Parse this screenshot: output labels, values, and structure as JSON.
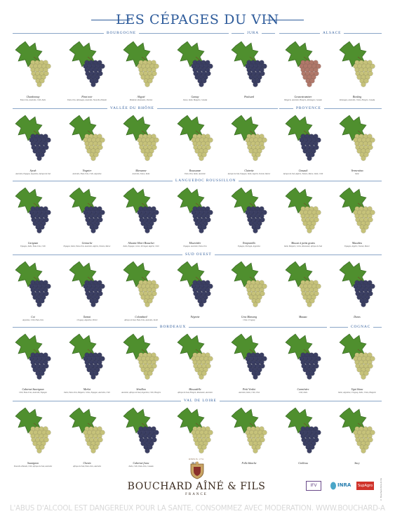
{
  "title": "LES CÉPAGES DU VIN",
  "regions": [
    {
      "label": "BOURGOGNE"
    },
    {
      "label": "JURA"
    },
    {
      "label": "ALSACE"
    },
    {
      "label": "VALLÉE DU RHÔNE"
    },
    {
      "label": "PROVENCE"
    },
    {
      "label": "LANGUEDOC ROUSSILLON"
    },
    {
      "label": "SUD OUEST"
    },
    {
      "label": "BORDEAUX"
    },
    {
      "label": "COGNAC"
    },
    {
      "label": "VAL DE LOIRE"
    }
  ],
  "rows": [
    [
      {
        "name": "Chardonnay",
        "origin": "Etats-Unis, Australie, Chili, Italie",
        "berry": "white"
      },
      {
        "name": "Pinot noir",
        "origin": "Etats-Unis, Allemagne, Australie, Nouvelle-Zélande",
        "berry": "black"
      },
      {
        "name": "Aligoté",
        "origin": "Moldavie, Roumanie, Ukraine",
        "berry": "white"
      },
      {
        "name": "Gamay",
        "origin": "Suisse, Italie, Bulgarie, Canada",
        "berry": "black"
      },
      {
        "name": "Poulsard",
        "origin": "",
        "berry": "black"
      },
      {
        "name": "Gewurztraminer",
        "origin": "Bulgarie, Australie, Hongrie, Allemagne, Canada",
        "berry": "pink"
      },
      {
        "name": "Riesling",
        "origin": "Allemagne, Australie, Chine, Hongrie, Canada",
        "berry": "white"
      }
    ],
    [
      {
        "name": "Syrah",
        "origin": "Australie, Espagne, Argentine, Afrique du Sud",
        "berry": "black"
      },
      {
        "name": "Viognier",
        "origin": "Australie, Etats-Unis, Chili, Argentine",
        "berry": "white"
      },
      {
        "name": "Marsanne",
        "origin": "Australie, Suisse, Italie",
        "berry": "white"
      },
      {
        "name": "Roussanne",
        "origin": "Etats-Unis, Italie, Australie",
        "berry": "white"
      },
      {
        "name": "Clairette",
        "origin": "Afrique du Sud, Espagne, Italie, Algérie, Tunisie, Maroc",
        "berry": "white"
      },
      {
        "name": "Cinsault",
        "origin": "Afrique du Sud, Algérie, Tunisie, Maroc, Italie, Chili",
        "berry": "black"
      },
      {
        "name": "Vermentino",
        "origin": "Italie",
        "berry": "white"
      }
    ],
    [
      {
        "name": "Carignan",
        "origin": "Espagne, Italie, Etats-Unis, Chili",
        "berry": "black"
      },
      {
        "name": "Grenache",
        "origin": "Espagne, Italie, Etats-Unis, Australie, Algérie, Tunisie, Maroc",
        "berry": "black"
      },
      {
        "name": "Alicante Henri Bouschet",
        "origin": "Italie, Espagne, Grèce, Portugal, Algérie, Chili",
        "berry": "black"
      },
      {
        "name": "Mourvèdre",
        "origin": "Espagne, Australie, Etats-Unis",
        "berry": "black"
      },
      {
        "name": "Tempranillo",
        "origin": "Espagne, Portugal, Argentine",
        "berry": "black"
      },
      {
        "name": "Muscat à petits grains",
        "origin": "Italie, Bulgarie, Grèce, Roumanie, Afrique du Sud",
        "berry": "white"
      },
      {
        "name": "Macabeu",
        "origin": "Espagne, Algérie, Tunisie, Maroc",
        "berry": "white"
      }
    ],
    [
      {
        "name": "Cot",
        "origin": "Argentine, Chili, Etats-Unis",
        "berry": "black"
      },
      {
        "name": "Tannat",
        "origin": "Uruguay, Argentine, Brésil",
        "berry": "black"
      },
      {
        "name": "Colombard",
        "origin": "Afrique du Sud, Etats-Unis, Australie, Israël",
        "berry": "white"
      },
      {
        "name": "Négrette",
        "origin": "",
        "berry": "black"
      },
      {
        "name": "Gros Manseng",
        "origin": "Chine, Uruguay",
        "berry": "white"
      },
      {
        "name": "Mauzac",
        "origin": "",
        "berry": "white"
      },
      {
        "name": "Duras",
        "origin": "",
        "berry": "black"
      }
    ],
    [
      {
        "name": "Cabernet Sauvignon",
        "origin": "Chili, Etats-Unis, Australie, Espagne",
        "berry": "black"
      },
      {
        "name": "Merlot",
        "origin": "Italie, Etats-Unis, Bulgarie, Chine, Espagne, Australie, Chili",
        "berry": "black"
      },
      {
        "name": "Sémillon",
        "origin": "Australie, Afrique du Sud, Argentine, Chili, Hongrie",
        "berry": "white"
      },
      {
        "name": "Muscadelle",
        "origin": "Afrique du Sud, Hongrie, Roumanie, Australie",
        "berry": "white"
      },
      {
        "name": "Petit Verdot",
        "origin": "Australie, Italie, Chili, USA",
        "berry": "black"
      },
      {
        "name": "Carménère",
        "origin": "Chili, Italie",
        "berry": "black"
      },
      {
        "name": "Ugni blanc",
        "origin": "Italie, Argentine, Uruguay, Italie, Chine, Bulgarie",
        "berry": "white"
      }
    ],
    [
      {
        "name": "Sauvignon",
        "origin": "Nouvelle-Zélande, Chili, Afrique du Sud, Australie",
        "berry": "white"
      },
      {
        "name": "Chenin",
        "origin": "Afrique du Sud, Etats-Unis, Australie",
        "berry": "white"
      },
      {
        "name": "Cabernet franc",
        "origin": "Italie, Chili, Etats-Unis, Canada",
        "berry": "black"
      },
      {
        "name": "Melon",
        "origin": "",
        "berry": "white"
      },
      {
        "name": "Folle blanche",
        "origin": "",
        "berry": "white"
      },
      {
        "name": "Grolleau",
        "origin": "",
        "berry": "black"
      },
      {
        "name": "Sacy",
        "origin": "",
        "berry": "white"
      }
    ]
  ],
  "footer": {
    "crest_label": "DEPUIS 1731",
    "brand": "BOUCHARD AÎNÉ & FILS",
    "country": "FRANCE",
    "warning": "L'ABUS D'ALCOOL EST DANGEREUX POUR LA SANTÉ, CONSOMMEZ AVEC MODÉRATION. WWW.BOUCHARD-AINE.FR",
    "logo_ifv": "IFV",
    "logo_inra": "INRA",
    "logo_supagro": "SupAgro",
    "side_credit": "© Bouchard Aîné & Fils"
  },
  "colors": {
    "title": "#2c5a9a",
    "leaf": "#4f8f2e",
    "black_grape": "#3b3f63",
    "white_grape": "#c6c27a",
    "pink_grape": "#b0786a",
    "warning": "#d8d8d8"
  }
}
